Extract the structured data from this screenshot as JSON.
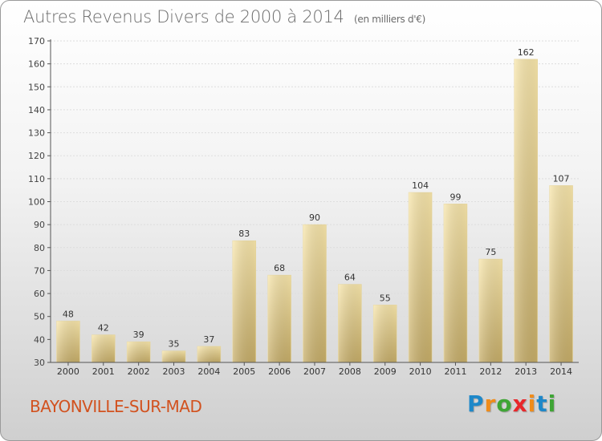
{
  "title": "Autres Revenus Divers de 2000 à 2014",
  "unit": "(en milliers d'€)",
  "commune": "BAYONVILLE-SUR-MAD",
  "logo": {
    "letters": [
      "P",
      "r",
      "o",
      "x",
      "i",
      "t",
      "i"
    ],
    "colors": [
      "#1e88c9",
      "#f08c1a",
      "#3fa535",
      "#e8262a",
      "#f08c1a",
      "#1e88c9",
      "#3fa535"
    ]
  },
  "colors": {
    "bar_light": "#f6e2a4",
    "bar_dark": "#c9b06c",
    "axis": "#555555",
    "grid": "#dddddd",
    "commune": "#d2521f"
  },
  "chart_data": {
    "type": "bar",
    "title": "Autres Revenus Divers de 2000 à 2014",
    "categories": [
      "2000",
      "2001",
      "2002",
      "2003",
      "2004",
      "2005",
      "2006",
      "2007",
      "2008",
      "2009",
      "2010",
      "2011",
      "2012",
      "2013",
      "2014"
    ],
    "values": [
      48,
      42,
      39,
      35,
      37,
      83,
      68,
      90,
      64,
      55,
      104,
      99,
      75,
      162,
      107
    ],
    "ylim": [
      30,
      170
    ],
    "yticks": [
      30,
      40,
      50,
      60,
      70,
      80,
      90,
      100,
      110,
      120,
      130,
      140,
      150,
      160,
      170
    ],
    "grid": true
  }
}
